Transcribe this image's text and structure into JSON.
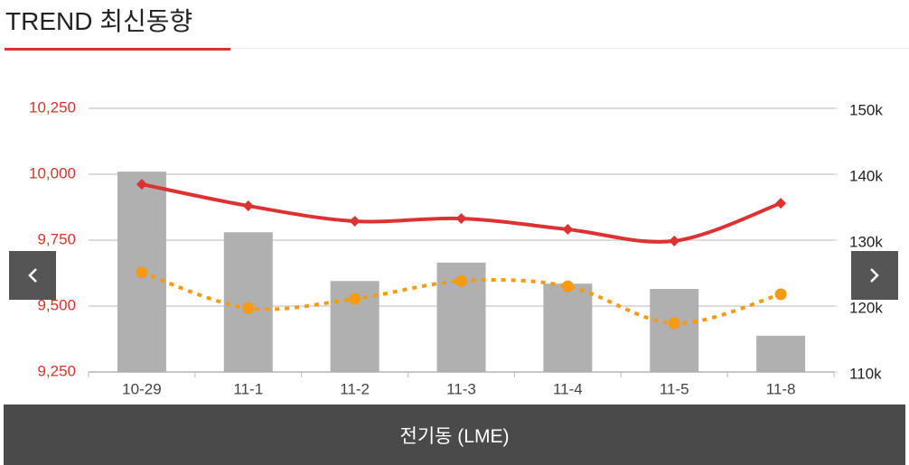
{
  "header": {
    "title": "TREND 최신동향"
  },
  "chart_data": {
    "type": "combo",
    "categories": [
      "10-29",
      "11-1",
      "11-2",
      "11-3",
      "11-4",
      "11-5",
      "11-8"
    ],
    "ylim": [
      9250,
      10250
    ],
    "yticks": [
      {
        "value": 9250,
        "label": "9,250"
      },
      {
        "value": 9500,
        "label": "9,500"
      },
      {
        "value": 9750,
        "label": "9,750"
      },
      {
        "value": 10000,
        "label": "10,000"
      },
      {
        "value": 10250,
        "label": "10,250"
      }
    ],
    "ytick_color": "#d9342b",
    "y2lim": [
      110000,
      150000
    ],
    "y2ticks": [
      {
        "value": 110000,
        "label": "110k"
      },
      {
        "value": 120000,
        "label": "120k"
      },
      {
        "value": 130000,
        "label": "130k"
      },
      {
        "value": 140000,
        "label": "140k"
      },
      {
        "value": 150000,
        "label": "150k"
      }
    ],
    "grid": true,
    "series": [
      {
        "type": "bar",
        "axis": "y2",
        "color": "#b0b0b0",
        "values": [
          140400,
          131200,
          123800,
          126600,
          123400,
          122600,
          115500
        ]
      },
      {
        "type": "line",
        "color": "#dc3232",
        "marker": "diamond",
        "values": [
          9962,
          9880,
          9822,
          9832,
          9791,
          9747,
          9890
        ]
      },
      {
        "type": "line",
        "axis": "y2",
        "color": "#f59a12",
        "dashed": true,
        "marker": "circle",
        "values": [
          125100,
          119700,
          121100,
          123800,
          123000,
          117400,
          121800
        ]
      }
    ]
  },
  "footer": {
    "label": "전기동 (LME)"
  }
}
